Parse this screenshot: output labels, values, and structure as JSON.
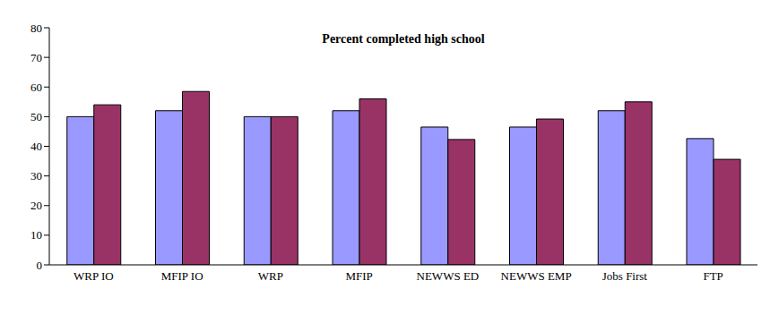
{
  "chart_data": {
    "type": "bar",
    "title": "Percent completed high school",
    "categories": [
      "WRP IO",
      "MFIP IO",
      "WRP",
      "MFIP",
      "NEWWS ED",
      "NEWWS EMP",
      "Jobs First",
      "FTP"
    ],
    "series": [
      {
        "color": "#9999ff",
        "values": [
          50,
          52,
          50,
          52,
          46.5,
          46.5,
          52,
          42.6
        ]
      },
      {
        "color": "#993366",
        "values": [
          54,
          58.5,
          50,
          56,
          42.3,
          49.2,
          55,
          35.6
        ]
      }
    ],
    "ylim": [
      0,
      80
    ],
    "yticks": [
      0,
      10,
      20,
      30,
      40,
      50,
      60,
      70,
      80
    ],
    "grid": false
  }
}
